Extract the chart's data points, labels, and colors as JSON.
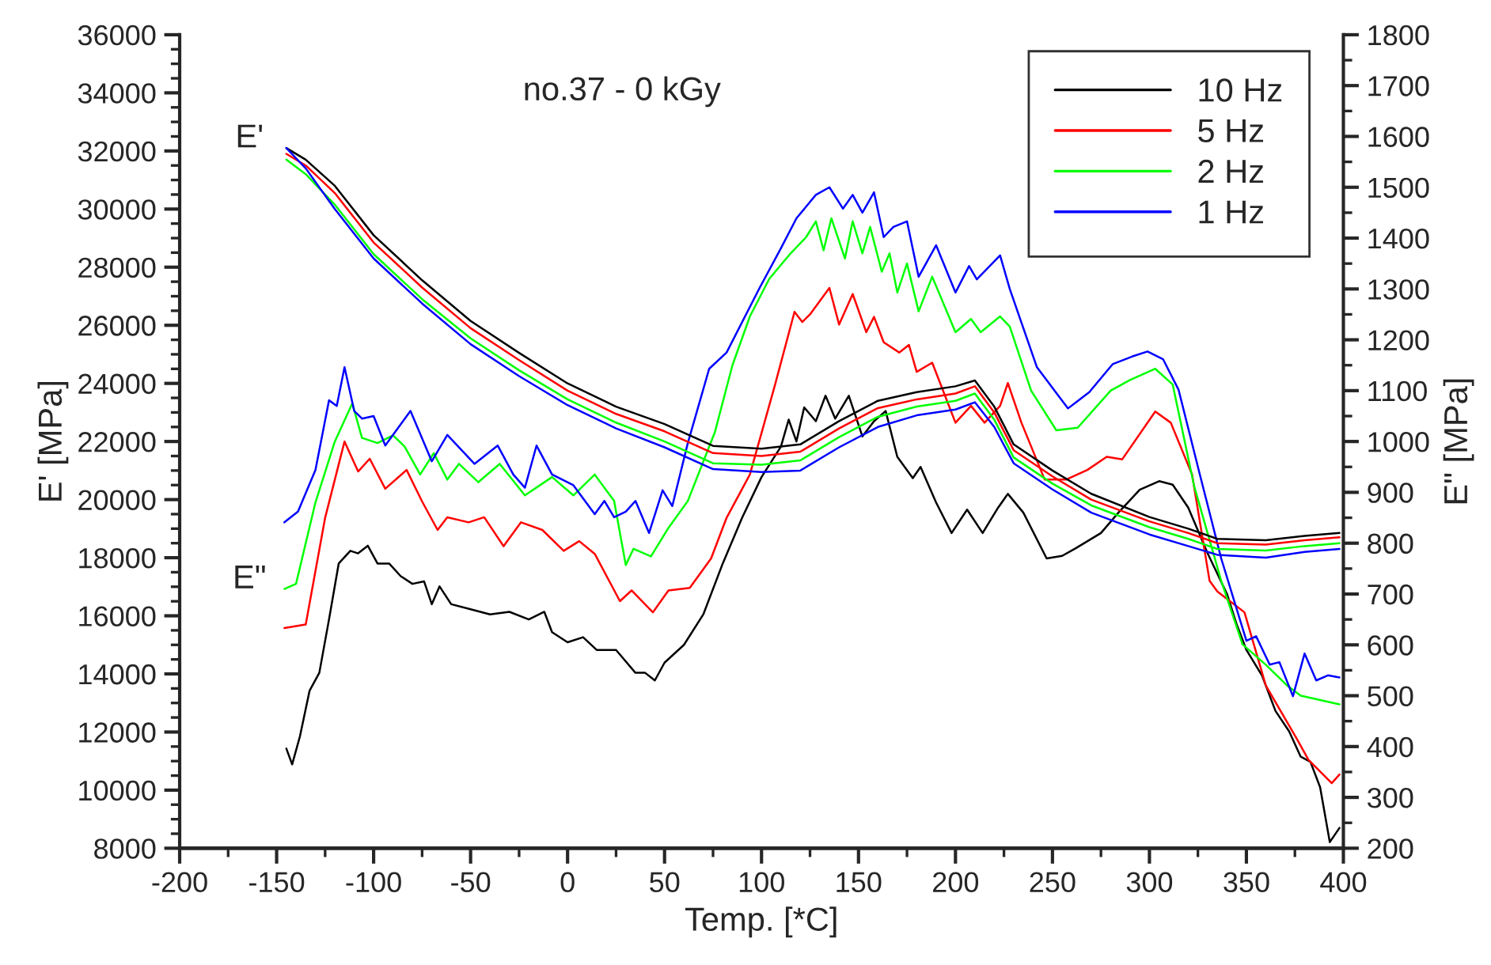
{
  "chart_data": {
    "type": "line",
    "title": "no.37 - 0 kGy",
    "xlabel": "Temp. [*C]",
    "ylabel": "E' [MPa]",
    "y2label": "E\" [MPa]",
    "xlim": [
      -200,
      400
    ],
    "xticks": [
      -200,
      -150,
      -100,
      -50,
      0,
      50,
      100,
      150,
      200,
      250,
      300,
      350,
      400
    ],
    "ylim": [
      8000,
      36000
    ],
    "yticks": [
      8000,
      10000,
      12000,
      14000,
      16000,
      18000,
      20000,
      22000,
      24000,
      26000,
      28000,
      30000,
      32000,
      34000,
      36000
    ],
    "y2lim": [
      200,
      1800
    ],
    "y2ticks": [
      200,
      300,
      400,
      500,
      600,
      700,
      800,
      900,
      1000,
      1100,
      1200,
      1300,
      1400,
      1500,
      1600,
      1700,
      1800
    ],
    "grid": false,
    "legend": "top right",
    "marker": "none",
    "line_style": "solid",
    "annotations": [
      "E'",
      "E\""
    ],
    "series": [
      {
        "name": "10 Hz",
        "color": "#000000",
        "axis": "y",
        "x": [
          -145,
          -135,
          -120,
          -100,
          -75,
          -50,
          -25,
          0,
          25,
          50,
          75,
          100,
          120,
          140,
          160,
          180,
          200,
          210,
          220,
          230,
          250,
          270,
          300,
          320,
          335,
          360,
          380,
          398
        ],
        "values": [
          32100,
          31700,
          30800,
          29100,
          27550,
          26150,
          25050,
          24000,
          23200,
          22600,
          21850,
          21750,
          21900,
          22700,
          23400,
          23700,
          23900,
          24100,
          23200,
          21900,
          21000,
          20200,
          19400,
          19000,
          18650,
          18600,
          18750,
          18850
        ]
      },
      {
        "name": "5 Hz",
        "color": "#ff0000",
        "axis": "y",
        "x": [
          -145,
          -135,
          -120,
          -100,
          -75,
          -50,
          -25,
          0,
          25,
          50,
          75,
          100,
          120,
          140,
          160,
          180,
          200,
          210,
          220,
          230,
          250,
          270,
          300,
          320,
          335,
          360,
          380,
          398
        ],
        "values": [
          31900,
          31500,
          30550,
          28850,
          27300,
          25900,
          24800,
          23750,
          22950,
          22350,
          21600,
          21500,
          21650,
          22450,
          23150,
          23450,
          23650,
          23900,
          23000,
          21700,
          20800,
          20000,
          19250,
          18850,
          18500,
          18450,
          18600,
          18700
        ]
      },
      {
        "name": "2 Hz",
        "color": "#00ff00",
        "axis": "y",
        "x": [
          -145,
          -135,
          -120,
          -100,
          -75,
          -50,
          -25,
          0,
          25,
          50,
          75,
          100,
          120,
          140,
          160,
          180,
          200,
          210,
          220,
          230,
          250,
          270,
          300,
          320,
          335,
          360,
          380,
          398
        ],
        "values": [
          31700,
          31200,
          30150,
          28450,
          26900,
          25550,
          24450,
          23450,
          22650,
          22000,
          21250,
          21200,
          21350,
          22150,
          22850,
          23200,
          23400,
          23650,
          22750,
          21450,
          20550,
          19800,
          19050,
          18650,
          18300,
          18250,
          18400,
          18500
        ]
      },
      {
        "name": "1 Hz",
        "color": "#0000ff",
        "axis": "y",
        "x": [
          -145,
          -135,
          -120,
          -100,
          -75,
          -50,
          -25,
          0,
          25,
          50,
          75,
          100,
          120,
          140,
          160,
          180,
          200,
          210,
          220,
          230,
          250,
          270,
          300,
          320,
          335,
          360,
          380,
          398
        ],
        "values": [
          32100,
          31400,
          30000,
          28300,
          26750,
          25350,
          24250,
          23250,
          22450,
          21800,
          21050,
          20950,
          21000,
          21800,
          22500,
          22900,
          23100,
          23350,
          22500,
          21250,
          20350,
          19550,
          18800,
          18400,
          18100,
          18000,
          18200,
          18300
        ]
      },
      {
        "color": "#000000",
        "axis": "y2",
        "x": [
          -145,
          -142,
          -138,
          -133,
          -128,
          -123,
          -118,
          -112,
          -108,
          -103,
          -98,
          -92,
          -86,
          -80,
          -74,
          -70,
          -66,
          -60,
          -50,
          -40,
          -30,
          -20,
          -12,
          -8,
          0,
          8,
          15,
          25,
          35,
          40,
          45,
          50,
          60,
          70,
          80,
          90,
          100,
          110,
          114,
          118,
          122,
          128,
          133,
          138,
          145,
          152,
          158,
          164,
          170,
          178,
          182,
          190,
          198,
          206,
          214,
          222,
          227,
          235,
          247,
          255,
          262,
          275,
          284,
          295,
          305,
          312,
          320,
          330,
          340,
          345,
          350,
          358,
          365,
          372,
          378,
          383,
          388,
          393,
          398
        ],
        "values": [
          396,
          365,
          420,
          510,
          545,
          650,
          760,
          785,
          780,
          795,
          760,
          760,
          735,
          720,
          725,
          680,
          715,
          680,
          670,
          660,
          665,
          650,
          665,
          625,
          605,
          615,
          590,
          590,
          545,
          545,
          530,
          565,
          600,
          660,
          760,
          850,
          930,
          990,
          1043,
          1000,
          1067,
          1040,
          1090,
          1045,
          1090,
          1010,
          1040,
          1060,
          970,
          928,
          950,
          880,
          820,
          866,
          820,
          870,
          897,
          860,
          770,
          775,
          790,
          820,
          860,
          905,
          922,
          915,
          870,
          780,
          700,
          640,
          590,
          540,
          470,
          430,
          380,
          370,
          320,
          212,
          240
        ]
      },
      {
        "color": "#ff0000",
        "axis": "y2",
        "x": [
          -146,
          -135,
          -125,
          -115,
          -108,
          -102,
          -94,
          -83,
          -75,
          -67,
          -62,
          -51,
          -43,
          -33,
          -24,
          -13,
          -2,
          6,
          14,
          27,
          33,
          44,
          52,
          63,
          74,
          82,
          94,
          107,
          117,
          121,
          125,
          135,
          140,
          147,
          154,
          158,
          163,
          171,
          176,
          180,
          188,
          200,
          208,
          215,
          223,
          227,
          234,
          246,
          257,
          268,
          278,
          286,
          303,
          311,
          322,
          331,
          335,
          349,
          360,
          376,
          382,
          394,
          398
        ],
        "values": [
          633,
          640,
          850,
          1000,
          941,
          966,
          907,
          944,
          882,
          826,
          851,
          841,
          851,
          794,
          841,
          826,
          785,
          804,
          779,
          686,
          707,
          664,
          707,
          712,
          770,
          850,
          935,
          1112,
          1255,
          1235,
          1250,
          1302,
          1230,
          1290,
          1215,
          1245,
          1195,
          1175,
          1190,
          1137,
          1155,
          1037,
          1070,
          1037,
          1070,
          1115,
          1037,
          925,
          925,
          944,
          970,
          965,
          1059,
          1037,
          935,
          726,
          705,
          664,
          520,
          415,
          374,
          328,
          345
        ]
      },
      {
        "color": "#00ff00",
        "axis": "y2",
        "x": [
          -146,
          -140,
          -130,
          -120,
          -111,
          -106,
          -98,
          -90,
          -84,
          -76,
          -69,
          -62,
          -56,
          -46,
          -35,
          -22,
          -8,
          3,
          14,
          24,
          30,
          34,
          43,
          52,
          62,
          76,
          85,
          94,
          104,
          115,
          123,
          128,
          132,
          136,
          143,
          147,
          152,
          156,
          162,
          166,
          170,
          175,
          181,
          188,
          200,
          208,
          213,
          223,
          228,
          239,
          252,
          263,
          280,
          290,
          303,
          312,
          323,
          337,
          348,
          360,
          371,
          378,
          398
        ],
        "values": [
          710,
          720,
          880,
          1000,
          1075,
          1007,
          997,
          1012,
          990,
          935,
          977,
          925,
          956,
          920,
          956,
          894,
          930,
          894,
          935,
          883,
          757,
          789,
          774,
          830,
          883,
          1019,
          1150,
          1246,
          1320,
          1370,
          1402,
          1433,
          1376,
          1439,
          1360,
          1433,
          1370,
          1422,
          1334,
          1370,
          1293,
          1350,
          1256,
          1324,
          1215,
          1241,
          1215,
          1246,
          1226,
          1100,
          1022,
          1027,
          1100,
          1121,
          1143,
          1112,
          913,
          726,
          601,
          561,
          520,
          500,
          483
        ]
      },
      {
        "color": "#0000ff",
        "axis": "y2",
        "x": [
          -146,
          -139,
          -130,
          -123,
          -119,
          -115,
          -110,
          -106,
          -100,
          -94,
          -81,
          -70,
          -62,
          -48,
          -36,
          -28,
          -22,
          -16,
          -8,
          3,
          14,
          19,
          24,
          30,
          35,
          42,
          49,
          54,
          62,
          73,
          82,
          99,
          110,
          118,
          128,
          135,
          142,
          147,
          152,
          158,
          163,
          168,
          175,
          181,
          190,
          200,
          207,
          211,
          223,
          228,
          242,
          258,
          269,
          281,
          291,
          299,
          307,
          315,
          326,
          337,
          350,
          355,
          362,
          367,
          374,
          380,
          386,
          392,
          398
        ],
        "values": [
          841,
          862,
          944,
          1081,
          1070,
          1146,
          1060,
          1045,
          1050,
          992,
          1060,
          961,
          1013,
          956,
          992,
          935,
          909,
          992,
          935,
          914,
          857,
          883,
          851,
          862,
          883,
          820,
          904,
          873,
          997,
          1143,
          1175,
          1302,
          1380,
          1439,
          1485,
          1500,
          1458,
          1485,
          1450,
          1490,
          1402,
          1422,
          1433,
          1324,
          1386,
          1293,
          1345,
          1319,
          1366,
          1300,
          1146,
          1065,
          1097,
          1152,
          1167,
          1177,
          1162,
          1102,
          935,
          770,
          608,
          617,
          561,
          566,
          499,
          583,
          530,
          540,
          536
        ]
      }
    ]
  }
}
